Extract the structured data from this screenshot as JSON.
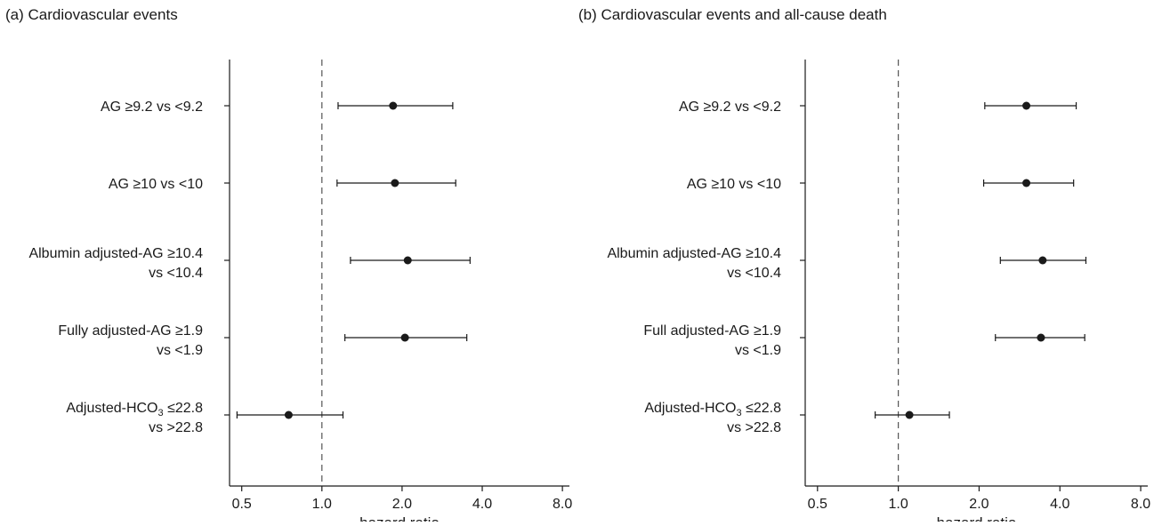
{
  "chart_data": [
    {
      "type": "forest",
      "title": "(a) Cardiovascular events",
      "xlabel": "hazard ratio",
      "xscale": "log2",
      "xlim": [
        0.45,
        8.5
      ],
      "xticks": [
        0.5,
        1.0,
        2.0,
        4.0,
        8.0
      ],
      "xtick_labels": [
        "0.5",
        "1.0",
        "2.0",
        "4.0",
        "8.0"
      ],
      "reference_line": 1.0,
      "rows": [
        {
          "label_lines": [
            "AG ≥9.2 vs <9.2"
          ],
          "hr": 1.85,
          "lower": 1.15,
          "upper": 3.1
        },
        {
          "label_lines": [
            "AG ≥10 vs <10"
          ],
          "hr": 1.88,
          "lower": 1.14,
          "upper": 3.18
        },
        {
          "label_lines": [
            "Albumin adjusted-AG ≥10.4",
            "vs <10.4"
          ],
          "hr": 2.1,
          "lower": 1.28,
          "upper": 3.6
        },
        {
          "label_lines": [
            "Fully adjusted-AG ≥1.9",
            "vs <1.9"
          ],
          "hr": 2.05,
          "lower": 1.22,
          "upper": 3.5
        },
        {
          "label_lines": [
            "Adjusted-HCO",
            "3",
            " ≤22.8",
            "vs >22.8"
          ],
          "label_has_subscript": true,
          "hr": 0.75,
          "lower": 0.48,
          "upper": 1.2
        }
      ]
    },
    {
      "type": "forest",
      "title": "(b) Cardiovascular events and all-cause death",
      "xlabel": "hazard ratio",
      "xscale": "log2",
      "xlim": [
        0.45,
        8.5
      ],
      "xticks": [
        0.5,
        1.0,
        2.0,
        4.0,
        8.0
      ],
      "xtick_labels": [
        "0.5",
        "1.0",
        "2.0",
        "4.0",
        "8.0"
      ],
      "reference_line": 1.0,
      "rows": [
        {
          "label_lines": [
            "AG ≥9.2 vs <9.2"
          ],
          "hr": 3.0,
          "lower": 2.1,
          "upper": 4.6
        },
        {
          "label_lines": [
            "AG ≥10 vs <10"
          ],
          "hr": 3.0,
          "lower": 2.08,
          "upper": 4.5
        },
        {
          "label_lines": [
            "Albumin adjusted-AG ≥10.4",
            "vs <10.4"
          ],
          "hr": 3.45,
          "lower": 2.4,
          "upper": 5.0
        },
        {
          "label_lines": [
            "Full adjusted-AG ≥1.9",
            "vs <1.9"
          ],
          "hr": 3.4,
          "lower": 2.3,
          "upper": 4.95
        },
        {
          "label_lines": [
            "Adjusted-HCO",
            "3",
            " ≤22.8",
            "vs >22.8"
          ],
          "label_has_subscript": true,
          "hr": 1.1,
          "lower": 0.82,
          "upper": 1.55
        }
      ]
    }
  ],
  "style": {
    "ink": "#1a1a1a",
    "ref_line": "#555555"
  }
}
